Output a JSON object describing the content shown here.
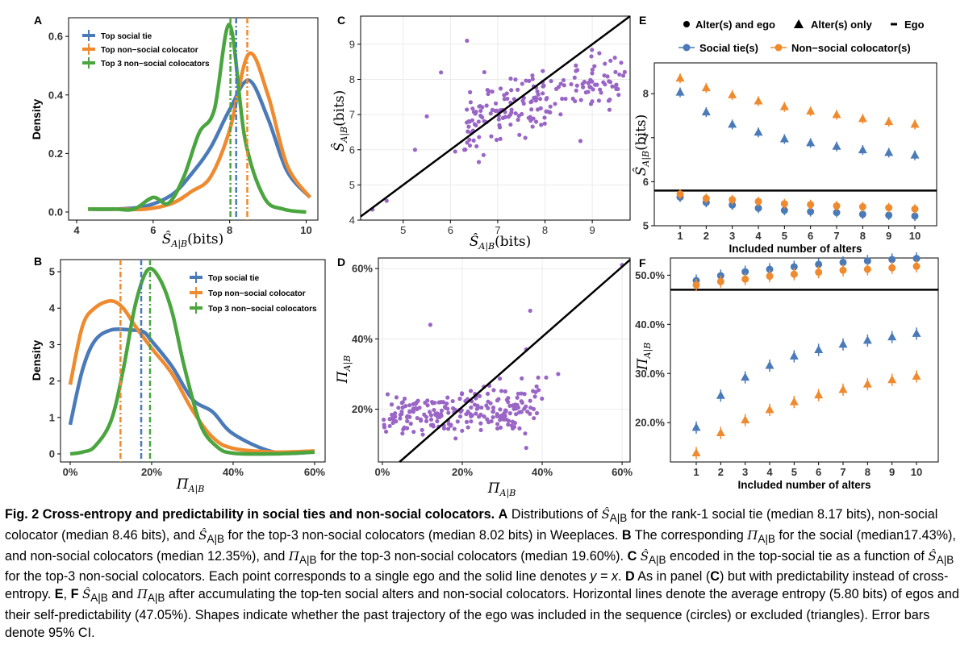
{
  "panels": {
    "A": {
      "letter": "A",
      "ylabel": "Density",
      "xlabel": "Ŝ",
      "xlabel_sub": "A|B",
      "xlabel_unit": "(bits)",
      "legend": [
        "Top social tie",
        "Top non−social colocator",
        "Top 3 non−social colocators"
      ]
    },
    "B": {
      "letter": "B",
      "ylabel": "Density",
      "xlabel": "Π",
      "xlabel_sub": "A|B",
      "legend": [
        "Top social tie",
        "Top non−social colocator",
        "Top 3 non−social colocators"
      ]
    },
    "C": {
      "letter": "C",
      "ylabel": "Ŝ",
      "ylabel_sub": "A|B",
      "ylabel_unit": "(bits)",
      "xlabel": "Ŝ",
      "xlabel_sub": "A|B",
      "xlabel_unit": "(bits)"
    },
    "D": {
      "letter": "D",
      "ylabel": "Π",
      "ylabel_sub": "A|B",
      "xlabel": "Π",
      "xlabel_sub": "A|B"
    },
    "E": {
      "letter": "E",
      "ylabel": "Ŝ",
      "ylabel_sub": "A|B",
      "ylabel_unit": "(bits)",
      "xlabel": "Included number of alters",
      "legend_shapes": [
        "Alter(s) and ego",
        "Alter(s) only",
        "Ego"
      ],
      "legend_series": [
        "Social tie(s)",
        "Non−social colocator(s)"
      ]
    },
    "F": {
      "letter": "F",
      "ylabel": "Π",
      "ylabel_sub": "A|B",
      "xlabel": "Included number of alters"
    }
  },
  "colors": {
    "social": "#4a7ab8",
    "nonsocial": "#ef8a2e",
    "top3": "#4aa53f",
    "scatter": "#9a66c6"
  },
  "chart_data": [
    {
      "panel": "A",
      "type": "line",
      "x_ticks": [
        "4",
        "6",
        "8",
        "10"
      ],
      "y_ticks": [
        "0.0",
        "0.2",
        "0.4",
        "0.6"
      ],
      "xlim": [
        4,
        10.2
      ],
      "ylim": [
        0,
        0.65
      ],
      "series": [
        {
          "name": "Top social tie",
          "x": [
            4.3,
            5,
            5.8,
            6.5,
            7,
            7.5,
            8,
            8.5,
            9,
            9.5,
            10.1
          ],
          "values": [
            0.01,
            0.01,
            0.02,
            0.06,
            0.13,
            0.22,
            0.35,
            0.45,
            0.32,
            0.14,
            0.05
          ]
        },
        {
          "name": "Top non−social colocator",
          "x": [
            4.3,
            5,
            5.8,
            6.5,
            7,
            7.5,
            8,
            8.5,
            9,
            9.5,
            10.1
          ],
          "values": [
            0.01,
            0.01,
            0.01,
            0.03,
            0.07,
            0.12,
            0.28,
            0.54,
            0.4,
            0.16,
            0.05
          ]
        },
        {
          "name": "Top 3 non−social colocators",
          "x": [
            4.3,
            5,
            5.5,
            6,
            6.4,
            6.8,
            7.2,
            7.6,
            8,
            8.4,
            8.9,
            9.4,
            10
          ],
          "values": [
            0.01,
            0.01,
            0.01,
            0.05,
            0.03,
            0.12,
            0.27,
            0.35,
            0.64,
            0.25,
            0.05,
            0.01,
            0.0
          ]
        }
      ],
      "medians": [
        8.17,
        8.46,
        8.02
      ]
    },
    {
      "panel": "B",
      "type": "line",
      "x_ticks": [
        "0%",
        "20%",
        "40%",
        "60%"
      ],
      "y_ticks": [
        "0",
        "1",
        "2",
        "3",
        "4",
        "5"
      ],
      "xlim": [
        0,
        61
      ],
      "ylim": [
        0,
        5.2
      ],
      "series": [
        {
          "name": "Top social tie",
          "x": [
            0,
            3,
            6,
            10,
            15,
            18,
            20,
            25,
            30,
            35,
            40,
            50,
            60
          ],
          "values": [
            0.8,
            2.3,
            3.1,
            3.4,
            3.4,
            3.35,
            3.1,
            2.4,
            1.5,
            1.15,
            0.55,
            0.05,
            0.05
          ]
        },
        {
          "name": "Top non−social colocator",
          "x": [
            0,
            3,
            6,
            10,
            13,
            16,
            20,
            25,
            30,
            35,
            40,
            50,
            60
          ],
          "values": [
            1.9,
            3.5,
            4.0,
            4.2,
            4.0,
            3.5,
            2.9,
            2.2,
            1.2,
            0.45,
            0.15,
            0.05,
            0.08
          ]
        },
        {
          "name": "Top 3 non−social colocators",
          "x": [
            0,
            3,
            6,
            10,
            13,
            16,
            19,
            22,
            25,
            28,
            32,
            36,
            40,
            50,
            60
          ],
          "values": [
            0.0,
            0.05,
            0.2,
            0.9,
            2.3,
            4.1,
            5.05,
            4.8,
            3.9,
            2.4,
            0.8,
            0.2,
            0.02,
            0.0,
            0.05
          ]
        }
      ],
      "medians": [
        17.43,
        12.35,
        19.6
      ]
    },
    {
      "panel": "C",
      "type": "scatter",
      "x_ticks": [
        "5",
        "6",
        "7",
        "8",
        "9"
      ],
      "y_ticks": [
        "4",
        "5",
        "6",
        "7",
        "8",
        "9"
      ],
      "xlim": [
        4.1,
        9.8
      ],
      "ylim": [
        4,
        9.8
      ],
      "line": "y=x"
    },
    {
      "panel": "D",
      "type": "scatter",
      "x_ticks": [
        "0%",
        "20%",
        "40%",
        "60%"
      ],
      "y_ticks": [
        "20%",
        "40%",
        "60%"
      ],
      "xlim": [
        -1,
        62
      ],
      "ylim": [
        5,
        63
      ],
      "line": "y=x"
    },
    {
      "panel": "E",
      "type": "scatter",
      "categories": [
        "1",
        "2",
        "3",
        "4",
        "5",
        "6",
        "7",
        "8",
        "9",
        "10"
      ],
      "y_ticks": [
        "5",
        "6",
        "7",
        "8"
      ],
      "ylim": [
        5,
        8.7
      ],
      "ego": 5.8,
      "series": [
        {
          "name": "Social tie(s)",
          "shape": "triangle",
          "values": [
            8.03,
            7.58,
            7.3,
            7.12,
            6.97,
            6.88,
            6.8,
            6.72,
            6.66,
            6.6
          ]
        },
        {
          "name": "Non−social colocator(s)",
          "shape": "triangle",
          "values": [
            8.35,
            8.13,
            7.97,
            7.83,
            7.7,
            7.6,
            7.52,
            7.43,
            7.36,
            7.3
          ]
        },
        {
          "name": "Social tie(s)",
          "shape": "circle",
          "values": [
            5.65,
            5.53,
            5.47,
            5.4,
            5.35,
            5.32,
            5.3,
            5.26,
            5.24,
            5.22
          ]
        },
        {
          "name": "Non−social colocator(s)",
          "shape": "circle",
          "values": [
            5.72,
            5.62,
            5.59,
            5.55,
            5.5,
            5.48,
            5.45,
            5.43,
            5.41,
            5.38
          ]
        }
      ]
    },
    {
      "panel": "F",
      "type": "scatter",
      "categories": [
        "1",
        "2",
        "3",
        "4",
        "5",
        "6",
        "7",
        "8",
        "9",
        "10"
      ],
      "y_ticks": [
        "20.0%",
        "30.0%",
        "40.0%",
        "50.0%"
      ],
      "ylim": [
        12,
        53.5
      ],
      "ego": 47.05,
      "series": [
        {
          "name": "Social tie(s)",
          "shape": "circle",
          "values": [
            48.9,
            49.9,
            50.7,
            51.2,
            51.7,
            52.2,
            52.6,
            52.9,
            53.2,
            53.4
          ]
        },
        {
          "name": "Non−social colocator(s)",
          "shape": "circle",
          "values": [
            48.0,
            48.7,
            49.2,
            49.8,
            50.2,
            50.6,
            51.0,
            51.2,
            51.5,
            51.8
          ]
        },
        {
          "name": "Social tie(s)",
          "shape": "triangle",
          "values": [
            19.0,
            25.5,
            29.2,
            31.6,
            33.5,
            34.8,
            35.9,
            36.7,
            37.4,
            38.1
          ]
        },
        {
          "name": "Non−social colocator(s)",
          "shape": "triangle",
          "values": [
            13.8,
            17.9,
            20.5,
            22.6,
            24.2,
            25.6,
            26.7,
            27.8,
            28.7,
            29.4
          ]
        }
      ]
    }
  ],
  "caption": {
    "fig": "Fig. 2 Cross-entropy and predictability in social ties and non-social colocators.",
    "a_letter": "A",
    "a_1": " Distributions of ",
    "a_2": " for the rank-1 social tie (median 8.17 bits), non-social colocator (median 8.46 bits), and ",
    "a_3": " for the top-3 non-social colocators (median 8.02 bits) in Weeplaces.",
    "b_letter": "B",
    "b_1": " The corresponding ",
    "b_2": " for the social (median17.43%), and non-social colocators (median 12.35%), and ",
    "b_3": " for the top-3 non-social colocators (median 19.60%).",
    "c_letter": "C",
    "c_1": " encoded in the top-social tie as a function of ",
    "c_2": " for the top-3 non-social colocators. Each point corresponds to a single ego and the solid line denotes ",
    "c_eq": "y = x",
    "d_letter": "D",
    "d_1": " As in panel (",
    "d_c": "C",
    "d_2": ") but with predictability instead of cross-entropy.",
    "ef_letters_e": "E",
    "ef_letters_f": "F",
    "ef_1": " and ",
    "ef_2": " after accumulating the top-ten social alters and non-social colocators. Horizontal lines denote the average entropy (5.80 bits) of egos and their self-predictability (47.05%). Shapes indicate whether the past trajectory of the ego was included in the sequence (circles) or excluded (triangles). Error bars denote 95% CI.",
    "sym_S": "Ŝ",
    "sym_Pi": "Π",
    "sub": "A|B"
  }
}
